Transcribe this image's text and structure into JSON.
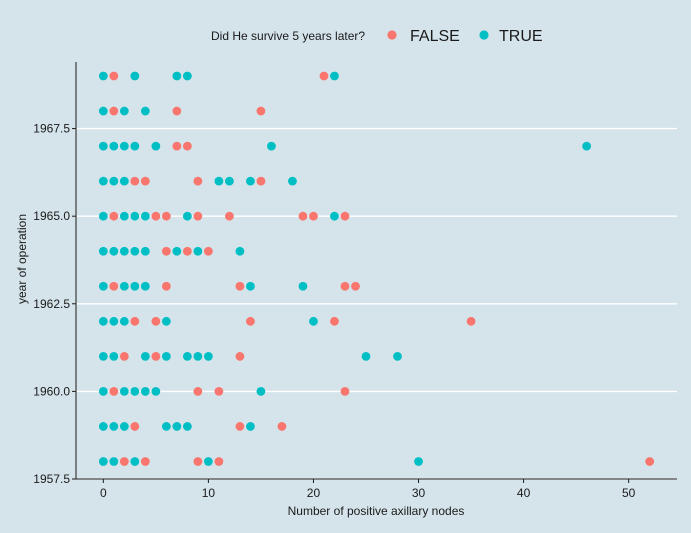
{
  "chart_data": {
    "type": "scatter",
    "title": "",
    "xlabel": "Number of positive axillary nodes",
    "ylabel": "year of operation",
    "xlim": [
      -2.6,
      54.6
    ],
    "ylim": [
      1957.5,
      1969.4
    ],
    "xticks": [
      0,
      10,
      20,
      30,
      40,
      50
    ],
    "xtick_labels": [
      "0",
      "10",
      "20",
      "30",
      "40",
      "50"
    ],
    "yticks": [
      1957.5,
      1960.0,
      1962.5,
      1965.0,
      1967.5
    ],
    "ytick_labels": [
      "1957.5",
      "1960.0",
      "1962.5",
      "1965.0",
      "1967.5"
    ],
    "legend": {
      "title": "Did He survive 5 years later?",
      "position": "top",
      "entries": [
        {
          "label": "FALSE",
          "color": "#f8766d"
        },
        {
          "label": "TRUE",
          "color": "#00bfc4"
        }
      ]
    },
    "series": [
      {
        "name": "FALSE",
        "color": "#f8766d",
        "points": [
          {
            "x": 1,
            "y": 1969
          },
          {
            "x": 21,
            "y": 1969
          },
          {
            "x": 1,
            "y": 1968
          },
          {
            "x": 7,
            "y": 1968
          },
          {
            "x": 15,
            "y": 1968
          },
          {
            "x": 7,
            "y": 1967
          },
          {
            "x": 8,
            "y": 1967
          },
          {
            "x": 3,
            "y": 1966
          },
          {
            "x": 4,
            "y": 1966
          },
          {
            "x": 9,
            "y": 1966
          },
          {
            "x": 15,
            "y": 1966
          },
          {
            "x": 1,
            "y": 1965
          },
          {
            "x": 5,
            "y": 1965
          },
          {
            "x": 6,
            "y": 1965
          },
          {
            "x": 9,
            "y": 1965
          },
          {
            "x": 12,
            "y": 1965
          },
          {
            "x": 19,
            "y": 1965
          },
          {
            "x": 20,
            "y": 1965
          },
          {
            "x": 23,
            "y": 1965
          },
          {
            "x": 6,
            "y": 1964
          },
          {
            "x": 8,
            "y": 1964
          },
          {
            "x": 10,
            "y": 1964
          },
          {
            "x": 1,
            "y": 1963
          },
          {
            "x": 6,
            "y": 1963
          },
          {
            "x": 13,
            "y": 1963
          },
          {
            "x": 23,
            "y": 1963
          },
          {
            "x": 24,
            "y": 1963
          },
          {
            "x": 3,
            "y": 1962
          },
          {
            "x": 5,
            "y": 1962
          },
          {
            "x": 14,
            "y": 1962
          },
          {
            "x": 22,
            "y": 1962
          },
          {
            "x": 35,
            "y": 1962
          },
          {
            "x": 2,
            "y": 1961
          },
          {
            "x": 5,
            "y": 1961
          },
          {
            "x": 13,
            "y": 1961
          },
          {
            "x": 1,
            "y": 1960
          },
          {
            "x": 9,
            "y": 1960
          },
          {
            "x": 11,
            "y": 1960
          },
          {
            "x": 23,
            "y": 1960
          },
          {
            "x": 3,
            "y": 1959
          },
          {
            "x": 13,
            "y": 1959
          },
          {
            "x": 17,
            "y": 1959
          },
          {
            "x": 2,
            "y": 1958
          },
          {
            "x": 4,
            "y": 1958
          },
          {
            "x": 9,
            "y": 1958
          },
          {
            "x": 11,
            "y": 1958
          },
          {
            "x": 52,
            "y": 1958
          }
        ]
      },
      {
        "name": "TRUE",
        "color": "#00bfc4",
        "points": [
          {
            "x": 0,
            "y": 1969
          },
          {
            "x": 3,
            "y": 1969
          },
          {
            "x": 7,
            "y": 1969
          },
          {
            "x": 8,
            "y": 1969
          },
          {
            "x": 22,
            "y": 1969
          },
          {
            "x": 0,
            "y": 1968
          },
          {
            "x": 2,
            "y": 1968
          },
          {
            "x": 4,
            "y": 1968
          },
          {
            "x": 0,
            "y": 1967
          },
          {
            "x": 1,
            "y": 1967
          },
          {
            "x": 2,
            "y": 1967
          },
          {
            "x": 3,
            "y": 1967
          },
          {
            "x": 5,
            "y": 1967
          },
          {
            "x": 16,
            "y": 1967
          },
          {
            "x": 46,
            "y": 1967
          },
          {
            "x": 0,
            "y": 1966
          },
          {
            "x": 1,
            "y": 1966
          },
          {
            "x": 2,
            "y": 1966
          },
          {
            "x": 11,
            "y": 1966
          },
          {
            "x": 12,
            "y": 1966
          },
          {
            "x": 14,
            "y": 1966
          },
          {
            "x": 18,
            "y": 1966
          },
          {
            "x": 0,
            "y": 1965
          },
          {
            "x": 2,
            "y": 1965
          },
          {
            "x": 3,
            "y": 1965
          },
          {
            "x": 4,
            "y": 1965
          },
          {
            "x": 8,
            "y": 1965
          },
          {
            "x": 22,
            "y": 1965
          },
          {
            "x": 0,
            "y": 1964
          },
          {
            "x": 1,
            "y": 1964
          },
          {
            "x": 2,
            "y": 1964
          },
          {
            "x": 3,
            "y": 1964
          },
          {
            "x": 4,
            "y": 1964
          },
          {
            "x": 7,
            "y": 1964
          },
          {
            "x": 9,
            "y": 1964
          },
          {
            "x": 13,
            "y": 1964
          },
          {
            "x": 0,
            "y": 1963
          },
          {
            "x": 2,
            "y": 1963
          },
          {
            "x": 3,
            "y": 1963
          },
          {
            "x": 4,
            "y": 1963
          },
          {
            "x": 14,
            "y": 1963
          },
          {
            "x": 19,
            "y": 1963
          },
          {
            "x": 0,
            "y": 1962
          },
          {
            "x": 1,
            "y": 1962
          },
          {
            "x": 2,
            "y": 1962
          },
          {
            "x": 6,
            "y": 1962
          },
          {
            "x": 20,
            "y": 1962
          },
          {
            "x": 0,
            "y": 1961
          },
          {
            "x": 1,
            "y": 1961
          },
          {
            "x": 4,
            "y": 1961
          },
          {
            "x": 6,
            "y": 1961
          },
          {
            "x": 8,
            "y": 1961
          },
          {
            "x": 9,
            "y": 1961
          },
          {
            "x": 10,
            "y": 1961
          },
          {
            "x": 25,
            "y": 1961
          },
          {
            "x": 28,
            "y": 1961
          },
          {
            "x": 0,
            "y": 1960
          },
          {
            "x": 2,
            "y": 1960
          },
          {
            "x": 3,
            "y": 1960
          },
          {
            "x": 4,
            "y": 1960
          },
          {
            "x": 5,
            "y": 1960
          },
          {
            "x": 15,
            "y": 1960
          },
          {
            "x": 0,
            "y": 1959
          },
          {
            "x": 1,
            "y": 1959
          },
          {
            "x": 2,
            "y": 1959
          },
          {
            "x": 6,
            "y": 1959
          },
          {
            "x": 7,
            "y": 1959
          },
          {
            "x": 8,
            "y": 1959
          },
          {
            "x": 14,
            "y": 1959
          },
          {
            "x": 0,
            "y": 1958
          },
          {
            "x": 1,
            "y": 1958
          },
          {
            "x": 3,
            "y": 1958
          },
          {
            "x": 10,
            "y": 1958
          },
          {
            "x": 30,
            "y": 1958
          }
        ]
      }
    ],
    "grid": "horizontal-major-only",
    "background": "#d5e4eb",
    "grid_color": "#ffffff",
    "axis_color": "#1a1a1a"
  }
}
